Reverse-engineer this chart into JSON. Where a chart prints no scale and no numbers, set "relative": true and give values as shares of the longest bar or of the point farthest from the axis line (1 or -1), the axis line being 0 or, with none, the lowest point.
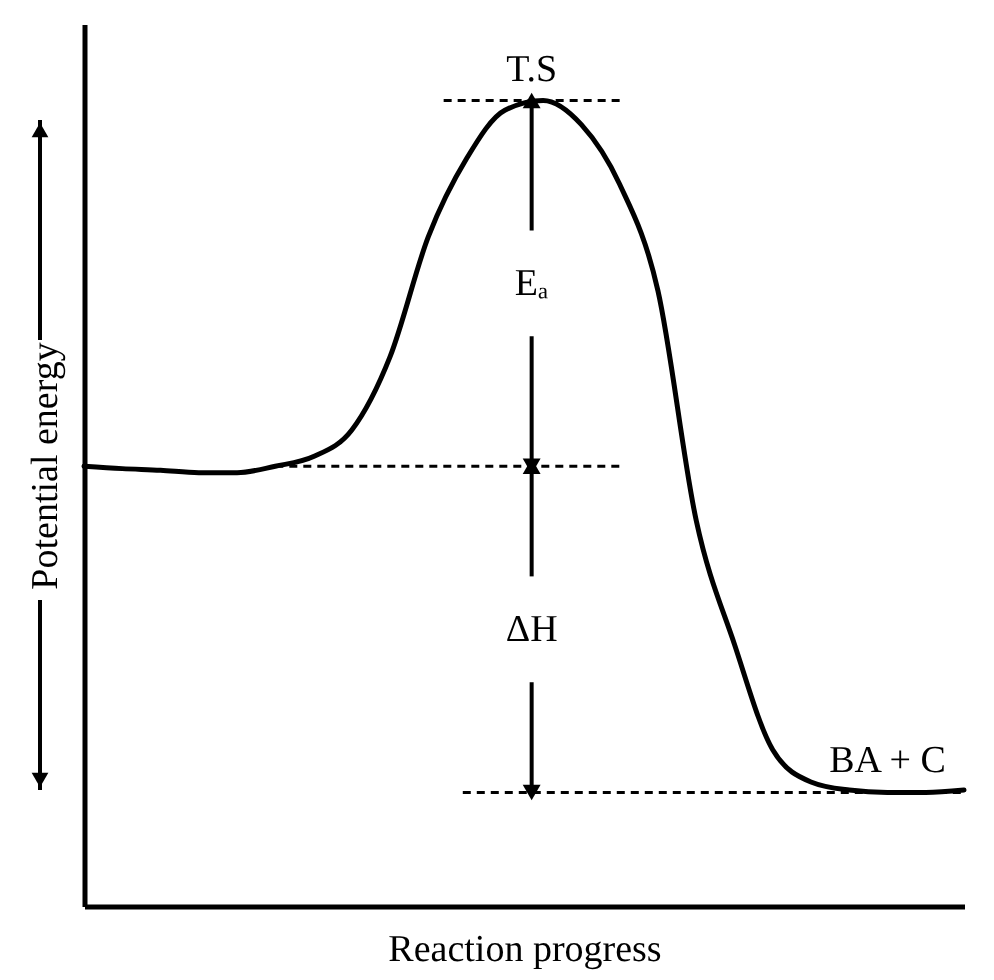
{
  "chart_data": {
    "type": "line",
    "relative": true,
    "xlabel": "Reaction progress",
    "ylabel": "Potential energy",
    "categories": [
      null,
      null,
      null,
      null,
      null,
      null,
      null,
      null,
      null,
      null,
      null,
      null,
      null,
      null,
      null,
      null,
      null,
      null,
      null,
      null,
      null,
      null,
      null,
      null
    ],
    "series": [
      {
        "color": "#000000",
        "values": [
          0.546,
          0.543,
          0.541,
          0.538,
          0.538,
          0.546,
          0.558,
          0.591,
          0.682,
          0.831,
          0.928,
          0.988,
          1.0,
          0.97,
          0.896,
          0.764,
          0.479,
          0.325,
          0.194,
          0.154,
          0.144,
          0.141,
          0.141,
          0.144
        ]
      }
    ],
    "ref_lines": [
      {
        "axis": "y",
        "value": 1.0,
        "label": "T.S",
        "line_style": "dashed"
      },
      {
        "axis": "y",
        "value": 0.546,
        "line_style": "dashed"
      },
      {
        "axis": "y",
        "value": 0.141,
        "label": "BA + C",
        "line_style": "dashed"
      }
    ],
    "annotations": [
      "Eₐ",
      "ΔH"
    ],
    "grid": false,
    "legend": false,
    "marker": "none",
    "line_style": "solid"
  }
}
